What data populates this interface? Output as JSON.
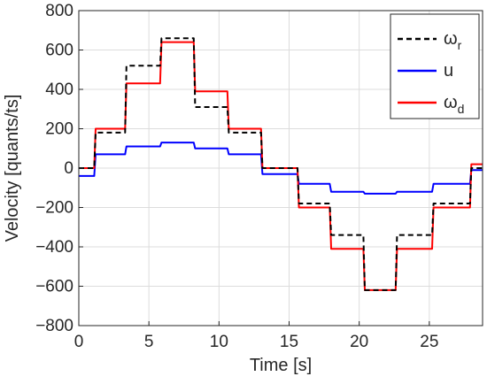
{
  "chart_data": {
    "type": "line",
    "title": "",
    "xlabel": "Time [s]",
    "ylabel": "Velocity [quants/ts]",
    "xlim": [
      0,
      28.8
    ],
    "ylim": [
      -800,
      800
    ],
    "xticks": [
      0,
      5,
      10,
      15,
      20,
      25
    ],
    "yticks": [
      -800,
      -600,
      -400,
      -200,
      0,
      200,
      400,
      600,
      800
    ],
    "xtick_labels": [
      "0",
      "5",
      "10",
      "15",
      "20",
      "25"
    ],
    "ytick_labels": [
      "−800",
      "−600",
      "−400",
      "−200",
      "0",
      "200",
      "400",
      "600",
      "800"
    ],
    "grid": true,
    "legend_position": "top-right",
    "series": [
      {
        "name": "ω",
        "subscript": "r",
        "color": "#000000",
        "style": "dashed",
        "x": [
          0,
          1.1,
          1.2,
          3.3,
          3.4,
          5.8,
          5.9,
          8.2,
          8.3,
          10.6,
          10.7,
          13.0,
          13.1,
          15.6,
          15.7,
          17.9,
          18.0,
          20.3,
          20.4,
          22.6,
          22.7,
          25.2,
          25.3,
          27.9,
          28.0,
          28.8
        ],
        "y": [
          0,
          0,
          180,
          180,
          520,
          520,
          660,
          660,
          310,
          310,
          180,
          180,
          0,
          0,
          -180,
          -180,
          -340,
          -340,
          -620,
          -620,
          -340,
          -340,
          -180,
          -180,
          0,
          0
        ]
      },
      {
        "name": "u",
        "subscript": "",
        "color": "#0000ff",
        "style": "solid",
        "x": [
          0,
          1.1,
          1.2,
          3.3,
          3.4,
          5.8,
          5.9,
          8.2,
          8.3,
          10.6,
          10.7,
          13.0,
          13.1,
          15.6,
          15.7,
          17.9,
          18.0,
          20.3,
          20.4,
          22.6,
          22.7,
          25.2,
          25.3,
          27.9,
          28.0,
          28.8
        ],
        "y": [
          -40,
          -40,
          70,
          70,
          110,
          110,
          130,
          130,
          100,
          100,
          70,
          70,
          -30,
          -30,
          -80,
          -80,
          -120,
          -120,
          -130,
          -130,
          -120,
          -120,
          -80,
          -80,
          -10,
          -10
        ]
      },
      {
        "name": "ω",
        "subscript": "d",
        "color": "#ff0000",
        "style": "solid",
        "x": [
          0,
          1.1,
          1.2,
          3.3,
          3.4,
          5.8,
          5.9,
          8.2,
          8.3,
          10.6,
          10.7,
          13.0,
          13.1,
          15.6,
          15.7,
          17.9,
          18.0,
          20.3,
          20.4,
          22.6,
          22.7,
          25.2,
          25.3,
          27.9,
          28.0,
          28.8
        ],
        "y": [
          0,
          0,
          200,
          200,
          430,
          430,
          640,
          640,
          390,
          390,
          200,
          200,
          0,
          0,
          -200,
          -200,
          -410,
          -410,
          -620,
          -620,
          -410,
          -410,
          -200,
          -200,
          20,
          20
        ]
      }
    ]
  }
}
